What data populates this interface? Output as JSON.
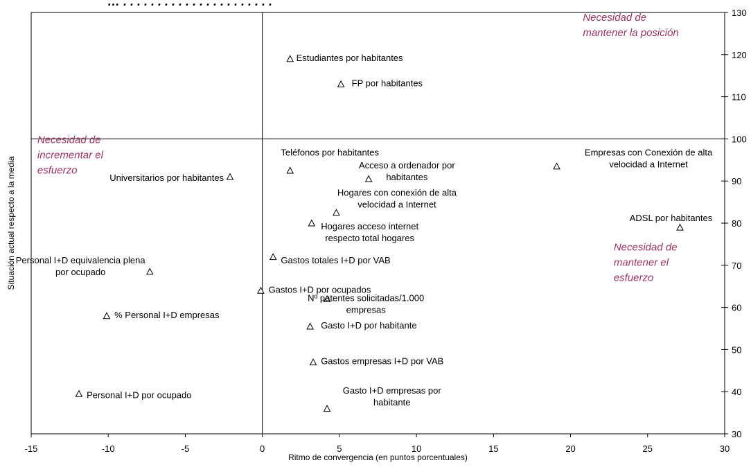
{
  "chart_data": {
    "type": "scatter",
    "title": "… . . . . . . . . . . . . . . . . . . . . . . ",
    "xlabel": "Ritmo de convergencia (en puntos porcentuales)",
    "ylabel": "Situación actual respecto a la media",
    "xlim": [
      -15,
      30
    ],
    "ylim": [
      30,
      130
    ],
    "x_ticks": [
      -15,
      -10,
      -5,
      0,
      5,
      10,
      15,
      20,
      25,
      30
    ],
    "y_ticks": [
      30,
      40,
      50,
      60,
      70,
      80,
      90,
      100,
      110,
      120,
      130
    ],
    "y_axis_side": "right",
    "crosshair": {
      "x": 0,
      "y": 100
    },
    "marker": "triangle-open",
    "quadrant_color": "#993366",
    "quadrant_labels": [
      {
        "lines": [
          "Necesidad de",
          "mantener la posición"
        ],
        "x": 20.8,
        "y": 128
      },
      {
        "lines": [
          "Necesidad de",
          "incrementar el",
          "esfuerzo"
        ],
        "x": -14.6,
        "y": 99
      },
      {
        "lines": [
          "Necesidad de",
          "mantener el",
          "esfuerzo"
        ],
        "x": 22.8,
        "y": 73.5
      }
    ],
    "points": [
      {
        "label": [
          "Estudiantes por habitantes"
        ],
        "x": 1.8,
        "y": 119,
        "label_x": 2.2,
        "label_y": 118.5,
        "anchor": "start"
      },
      {
        "label": [
          "FP por  habitantes"
        ],
        "x": 5.1,
        "y": 113,
        "label_x": 5.8,
        "label_y": 112.5,
        "anchor": "start"
      },
      {
        "label": [
          "Universitarios por  habitantes"
        ],
        "x": -2.1,
        "y": 91,
        "label_x": -2.5,
        "label_y": 90,
        "anchor": "end"
      },
      {
        "label": [
          "Teléfonos por  habitantes"
        ],
        "x": 1.8,
        "y": 92.5,
        "label_x": 1.2,
        "label_y": 96,
        "anchor": "start"
      },
      {
        "label": [
          "Acceso a ordenador por",
          "habitantes"
        ],
        "x": 6.9,
        "y": 90.5,
        "label_x": 12.5,
        "label_y": 93,
        "anchor": "end"
      },
      {
        "label": [
          "Empresas con Conexión de alta",
          "velocidad a Internet"
        ],
        "x": 19.1,
        "y": 93.5,
        "label_x": 29.2,
        "label_y": 96,
        "anchor": "end"
      },
      {
        "label": [
          "Hogares con conexión de alta",
          "velocidad a Internet"
        ],
        "x": 4.8,
        "y": 82.5,
        "label_x": 12.6,
        "label_y": 86.5,
        "anchor": "end"
      },
      {
        "label": [
          "ADSL por  habitantes"
        ],
        "x": 27.1,
        "y": 79,
        "label_x": 29.2,
        "label_y": 80.5,
        "anchor": "end"
      },
      {
        "label": [
          "Hogares acceso internet",
          "respecto total hogares"
        ],
        "x": 3.2,
        "y": 80,
        "label_x": 3.8,
        "label_y": 78.5,
        "anchor": "start"
      },
      {
        "label": [
          "Gastos totales I+D por VAB"
        ],
        "x": 0.7,
        "y": 72,
        "label_x": 1.2,
        "label_y": 70.5,
        "anchor": "start"
      },
      {
        "label": [
          "Personal I+D equivalencia plena",
          "por ocupado"
        ],
        "x": -7.3,
        "y": 68.5,
        "label_x": -7.6,
        "label_y": 70.5,
        "anchor": "end"
      },
      {
        "label": [
          "Gastos I+D por ocupados"
        ],
        "x": -0.1,
        "y": 64,
        "label_x": 0.4,
        "label_y": 63.5,
        "anchor": "start"
      },
      {
        "label": [
          "Nº patentes solicitadas/1.000",
          "empresas"
        ],
        "x": 4.2,
        "y": 62,
        "label_x": 10.5,
        "label_y": 61.5,
        "anchor": "end"
      },
      {
        "label": [
          "% Personal I+D empresas"
        ],
        "x": -10.1,
        "y": 58,
        "label_x": -9.6,
        "label_y": 57.5,
        "anchor": "start"
      },
      {
        "label": [
          "Gasto I+D por habitante"
        ],
        "x": 3.1,
        "y": 55.5,
        "label_x": 3.8,
        "label_y": 55,
        "anchor": "start"
      },
      {
        "label": [
          "Gastos empresas I+D por VAB"
        ],
        "x": 3.3,
        "y": 47,
        "label_x": 3.8,
        "label_y": 46.5,
        "anchor": "start"
      },
      {
        "label": [
          "Personal I+D por ocupado"
        ],
        "x": -11.9,
        "y": 39.5,
        "label_x": -11.4,
        "label_y": 38.5,
        "anchor": "start"
      },
      {
        "label": [
          "Gasto I+D empresas por",
          "habitante"
        ],
        "x": 4.2,
        "y": 36,
        "label_x": 11.6,
        "label_y": 39.5,
        "anchor": "end"
      }
    ]
  }
}
